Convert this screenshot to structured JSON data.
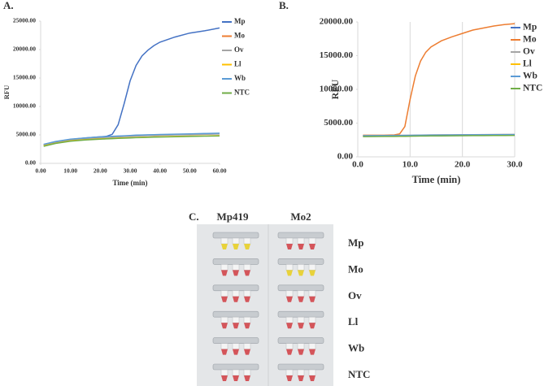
{
  "chart_data": [
    {
      "type": "line",
      "panel": "A.",
      "xlabel": "Time (min)",
      "ylabel": "RFU",
      "x": [
        1,
        5,
        10,
        15,
        20,
        22,
        24,
        26,
        28,
        30,
        32,
        34,
        36,
        38,
        40,
        45,
        50,
        55,
        60
      ],
      "xlim": [
        0,
        60
      ],
      "xticks": [
        {
          "value": 0,
          "label": "0.00"
        },
        {
          "value": 10,
          "label": "10.00"
        },
        {
          "value": 20,
          "label": "20.00"
        },
        {
          "value": 30,
          "label": "30.00"
        },
        {
          "value": 40,
          "label": "40.00"
        },
        {
          "value": 50,
          "label": "50.00"
        },
        {
          "value": 60,
          "label": "60.00"
        }
      ],
      "ylim": [
        0,
        25000
      ],
      "yticks": [
        {
          "value": 0,
          "label": "0.00"
        },
        {
          "value": 5000,
          "label": "5000.00"
        },
        {
          "value": 10000,
          "label": "10000.00"
        },
        {
          "value": 15000,
          "label": "15000.00"
        },
        {
          "value": 20000,
          "label": "20000.00"
        },
        {
          "value": 25000,
          "label": "25000.00"
        }
      ],
      "xgrid": false,
      "legend": "right",
      "series": [
        {
          "name": "Mp",
          "color": "#4472c4",
          "values": [
            3300,
            3800,
            4200,
            4450,
            4650,
            4750,
            5100,
            6800,
            10500,
            14500,
            17200,
            18900,
            19900,
            20700,
            21300,
            22200,
            22900,
            23300,
            23800
          ]
        },
        {
          "name": "Mo",
          "color": "#ed7d31",
          "values": [
            3250,
            3750,
            4150,
            4350,
            4550,
            4600,
            4650,
            4700,
            4750,
            4800,
            4850,
            4880,
            4910,
            4940,
            4970,
            5030,
            5090,
            5140,
            5200
          ]
        },
        {
          "name": "Ov",
          "color": "#a5a5a5",
          "values": [
            3200,
            3700,
            4100,
            4300,
            4500,
            4560,
            4610,
            4660,
            4710,
            4760,
            4800,
            4840,
            4870,
            4900,
            4930,
            5000,
            5050,
            5100,
            5150
          ]
        },
        {
          "name": "Ll",
          "color": "#ffc000",
          "values": [
            3100,
            3550,
            3950,
            4150,
            4300,
            4350,
            4400,
            4440,
            4480,
            4520,
            4560,
            4590,
            4620,
            4650,
            4680,
            4730,
            4780,
            4820,
            4870
          ]
        },
        {
          "name": "Wb",
          "color": "#5b9bd5",
          "values": [
            3350,
            3850,
            4250,
            4450,
            4650,
            4700,
            4750,
            4800,
            4850,
            4900,
            4950,
            4980,
            5010,
            5040,
            5070,
            5130,
            5190,
            5240,
            5300
          ]
        },
        {
          "name": "NTC",
          "color": "#70ad47",
          "values": [
            3000,
            3500,
            3900,
            4100,
            4250,
            4300,
            4350,
            4390,
            4430,
            4470,
            4510,
            4540,
            4570,
            4600,
            4630,
            4680,
            4730,
            4780,
            4830
          ]
        }
      ]
    },
    {
      "type": "line",
      "panel": "B.",
      "xlabel": "Time (min)",
      "ylabel": "RFU",
      "x": [
        1,
        3,
        5,
        7,
        8,
        9,
        10,
        11,
        12,
        13,
        14,
        16,
        18,
        20,
        22,
        24,
        26,
        28,
        30
      ],
      "xlim": [
        0,
        30
      ],
      "xticks": [
        {
          "value": 0,
          "label": "0.0"
        },
        {
          "value": 10,
          "label": "10.0"
        },
        {
          "value": 20,
          "label": "20.0"
        },
        {
          "value": 30,
          "label": "30.0"
        }
      ],
      "ylim": [
        0,
        20000
      ],
      "yticks": [
        {
          "value": 0,
          "label": "0.00"
        },
        {
          "value": 5000,
          "label": "5000.00"
        },
        {
          "value": 10000,
          "label": "10000.00"
        },
        {
          "value": 15000,
          "label": "15000.00"
        },
        {
          "value": 20000,
          "label": "20000.00"
        }
      ],
      "xgrid": true,
      "legend": "right",
      "series": [
        {
          "name": "Mp",
          "color": "#4472c4",
          "values": [
            3100,
            3110,
            3120,
            3130,
            3140,
            3150,
            3160,
            3170,
            3180,
            3190,
            3200,
            3210,
            3220,
            3230,
            3240,
            3250,
            3260,
            3270,
            3280
          ]
        },
        {
          "name": "Mo",
          "color": "#ed7d31",
          "values": [
            3200,
            3200,
            3200,
            3250,
            3400,
            4500,
            8500,
            12000,
            14200,
            15500,
            16300,
            17200,
            17800,
            18300,
            18800,
            19100,
            19400,
            19600,
            19750
          ]
        },
        {
          "name": "Ov",
          "color": "#a5a5a5",
          "values": [
            3150,
            3160,
            3170,
            3180,
            3190,
            3200,
            3210,
            3220,
            3230,
            3240,
            3250,
            3260,
            3270,
            3280,
            3290,
            3300,
            3310,
            3320,
            3330
          ]
        },
        {
          "name": "Ll",
          "color": "#ffc000",
          "values": [
            3050,
            3060,
            3070,
            3080,
            3090,
            3100,
            3110,
            3120,
            3130,
            3140,
            3150,
            3160,
            3170,
            3180,
            3190,
            3200,
            3210,
            3220,
            3230
          ]
        },
        {
          "name": "Wb",
          "color": "#5b9bd5",
          "values": [
            3120,
            3130,
            3140,
            3150,
            3160,
            3170,
            3180,
            3190,
            3200,
            3210,
            3220,
            3230,
            3240,
            3250,
            3260,
            3270,
            3280,
            3290,
            3300
          ]
        },
        {
          "name": "NTC",
          "color": "#70ad47",
          "values": [
            3000,
            3010,
            3020,
            3030,
            3040,
            3050,
            3060,
            3070,
            3080,
            3090,
            3100,
            3110,
            3120,
            3130,
            3140,
            3150,
            3160,
            3170,
            3180
          ]
        }
      ]
    }
  ],
  "photo": {
    "panel": "C.",
    "columns": [
      "Mp419",
      "Mo2"
    ],
    "rows": [
      "Mp",
      "Mo",
      "Ov",
      "Ll",
      "Wb",
      "NTC"
    ]
  }
}
